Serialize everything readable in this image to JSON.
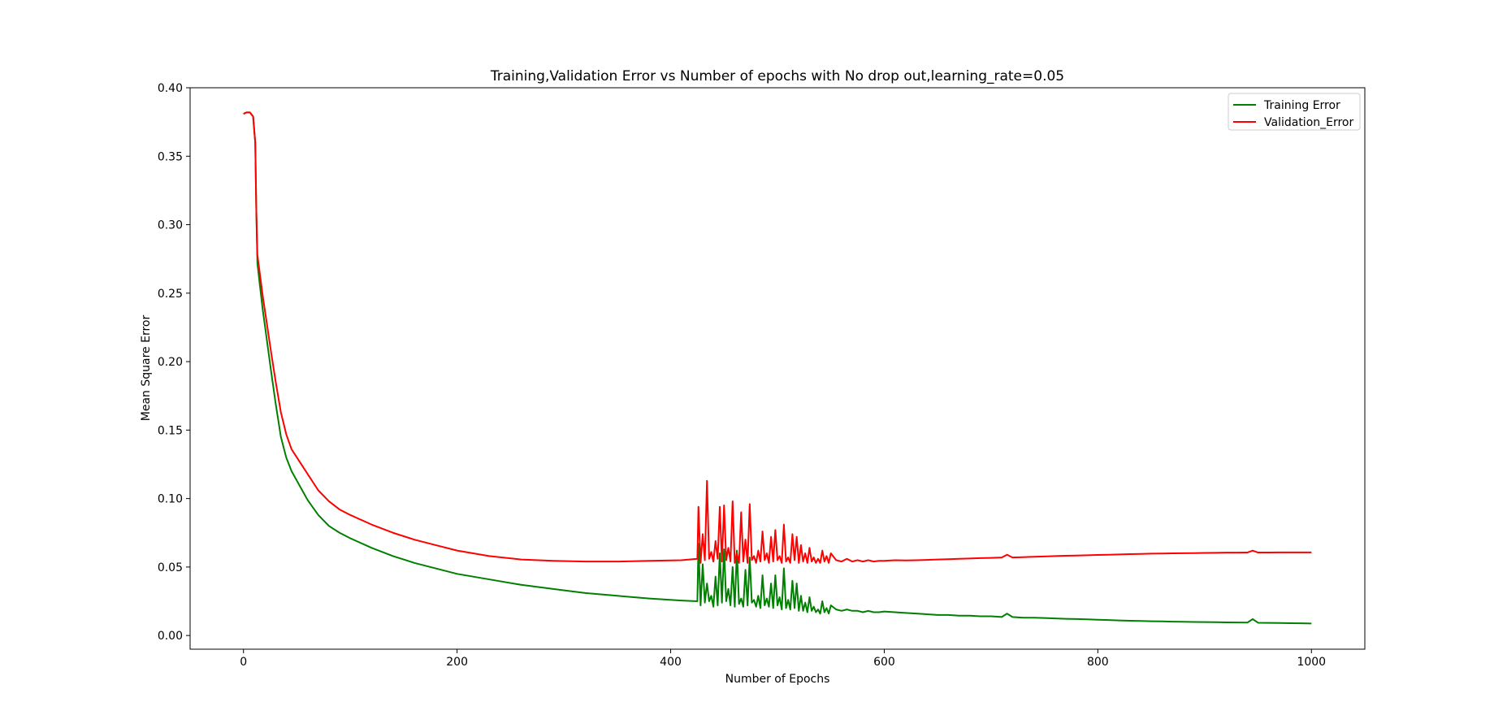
{
  "chart_data": {
    "type": "line",
    "title": "Training,Validation Error vs Number of epochs with No drop out,learning_rate=0.05",
    "xlabel": "Number of Epochs",
    "ylabel": "Mean Square Error",
    "xlim": [
      -50,
      1050
    ],
    "ylim": [
      -0.01,
      0.4
    ],
    "xticks": [
      0,
      200,
      400,
      600,
      800,
      1000
    ],
    "yticks": [
      0.0,
      0.05,
      0.1,
      0.15,
      0.2,
      0.25,
      0.3,
      0.35,
      0.4
    ],
    "xtick_labels": [
      "0",
      "200",
      "400",
      "600",
      "800",
      "1000"
    ],
    "ytick_labels": [
      "0.00",
      "0.05",
      "0.10",
      "0.15",
      "0.20",
      "0.25",
      "0.30",
      "0.35",
      "0.40"
    ],
    "grid": false,
    "legend_position": "top-right",
    "series": [
      {
        "name": "Training Error",
        "color": "#008000",
        "x": [
          0,
          3,
          6,
          9,
          11,
          12,
          13,
          14,
          15,
          18,
          22,
          26,
          30,
          35,
          40,
          45,
          50,
          55,
          60,
          70,
          80,
          90,
          100,
          120,
          140,
          160,
          180,
          200,
          230,
          260,
          290,
          320,
          350,
          380,
          410,
          425,
          426,
          428,
          430,
          432,
          434,
          436,
          438,
          440,
          442,
          444,
          446,
          448,
          450,
          452,
          454,
          456,
          458,
          460,
          462,
          464,
          466,
          468,
          470,
          472,
          474,
          476,
          478,
          480,
          482,
          484,
          486,
          488,
          490,
          492,
          494,
          496,
          498,
          500,
          502,
          504,
          506,
          508,
          510,
          512,
          514,
          516,
          518,
          520,
          522,
          524,
          526,
          528,
          530,
          532,
          534,
          536,
          538,
          540,
          542,
          544,
          546,
          548,
          550,
          555,
          560,
          565,
          570,
          575,
          580,
          585,
          590,
          595,
          600,
          610,
          620,
          630,
          640,
          650,
          660,
          670,
          680,
          690,
          700,
          710,
          715,
          720,
          730,
          740,
          750,
          760,
          770,
          780,
          790,
          800,
          810,
          820,
          830,
          840,
          850,
          860,
          870,
          880,
          890,
          900,
          910,
          920,
          930,
          940,
          945,
          950,
          960,
          970,
          980,
          990,
          1000
        ],
        "y": [
          0.381,
          0.382,
          0.382,
          0.379,
          0.36,
          0.31,
          0.272,
          0.265,
          0.258,
          0.238,
          0.215,
          0.192,
          0.17,
          0.145,
          0.13,
          0.12,
          0.113,
          0.106,
          0.099,
          0.088,
          0.08,
          0.075,
          0.071,
          0.064,
          0.058,
          0.053,
          0.049,
          0.045,
          0.041,
          0.037,
          0.034,
          0.031,
          0.029,
          0.027,
          0.0255,
          0.025,
          0.067,
          0.022,
          0.052,
          0.024,
          0.038,
          0.025,
          0.029,
          0.021,
          0.043,
          0.022,
          0.06,
          0.024,
          0.063,
          0.025,
          0.034,
          0.022,
          0.05,
          0.021,
          0.062,
          0.023,
          0.027,
          0.021,
          0.048,
          0.022,
          0.057,
          0.024,
          0.026,
          0.021,
          0.029,
          0.02,
          0.044,
          0.022,
          0.027,
          0.021,
          0.038,
          0.02,
          0.044,
          0.022,
          0.028,
          0.019,
          0.049,
          0.02,
          0.026,
          0.019,
          0.04,
          0.02,
          0.038,
          0.018,
          0.029,
          0.018,
          0.024,
          0.017,
          0.028,
          0.018,
          0.021,
          0.017,
          0.019,
          0.016,
          0.025,
          0.017,
          0.02,
          0.016,
          0.022,
          0.019,
          0.018,
          0.019,
          0.018,
          0.018,
          0.017,
          0.018,
          0.017,
          0.017,
          0.0175,
          0.017,
          0.0165,
          0.016,
          0.0155,
          0.015,
          0.015,
          0.0145,
          0.0145,
          0.014,
          0.014,
          0.0135,
          0.016,
          0.0135,
          0.013,
          0.013,
          0.0128,
          0.0125,
          0.0122,
          0.012,
          0.0118,
          0.0115,
          0.0113,
          0.011,
          0.0108,
          0.0106,
          0.0104,
          0.0103,
          0.0101,
          0.01,
          0.0099,
          0.0098,
          0.0097,
          0.0096,
          0.0095,
          0.0094,
          0.012,
          0.0093,
          0.0092,
          0.0091,
          0.009,
          0.0089,
          0.0088
        ]
      },
      {
        "name": "Validation_Error",
        "color": "#ff0000",
        "x": [
          0,
          3,
          6,
          9,
          11,
          12,
          13,
          14,
          15,
          18,
          22,
          26,
          30,
          35,
          40,
          45,
          50,
          55,
          60,
          70,
          80,
          90,
          100,
          120,
          140,
          160,
          180,
          200,
          230,
          260,
          290,
          320,
          350,
          380,
          410,
          425,
          426,
          428,
          430,
          432,
          434,
          436,
          438,
          440,
          442,
          444,
          446,
          448,
          450,
          452,
          454,
          456,
          458,
          460,
          462,
          464,
          466,
          468,
          470,
          472,
          474,
          476,
          478,
          480,
          482,
          484,
          486,
          488,
          490,
          492,
          494,
          496,
          498,
          500,
          502,
          504,
          506,
          508,
          510,
          512,
          514,
          516,
          518,
          520,
          522,
          524,
          526,
          528,
          530,
          532,
          534,
          536,
          538,
          540,
          542,
          544,
          546,
          548,
          550,
          555,
          560,
          565,
          570,
          575,
          580,
          585,
          590,
          595,
          600,
          610,
          620,
          630,
          640,
          650,
          660,
          670,
          680,
          690,
          700,
          710,
          715,
          720,
          730,
          740,
          750,
          760,
          770,
          780,
          790,
          800,
          810,
          820,
          830,
          840,
          850,
          860,
          870,
          880,
          890,
          900,
          910,
          920,
          930,
          940,
          945,
          950,
          960,
          970,
          980,
          990,
          1000
        ],
        "y": [
          0.381,
          0.382,
          0.382,
          0.379,
          0.36,
          0.31,
          0.278,
          0.272,
          0.266,
          0.248,
          0.227,
          0.206,
          0.186,
          0.163,
          0.147,
          0.136,
          0.13,
          0.124,
          0.118,
          0.106,
          0.098,
          0.092,
          0.088,
          0.081,
          0.075,
          0.07,
          0.066,
          0.062,
          0.058,
          0.0555,
          0.0545,
          0.054,
          0.054,
          0.0545,
          0.055,
          0.056,
          0.094,
          0.053,
          0.074,
          0.055,
          0.113,
          0.056,
          0.061,
          0.054,
          0.069,
          0.056,
          0.094,
          0.054,
          0.095,
          0.055,
          0.064,
          0.054,
          0.098,
          0.053,
          0.06,
          0.053,
          0.09,
          0.054,
          0.07,
          0.053,
          0.096,
          0.055,
          0.058,
          0.053,
          0.062,
          0.054,
          0.076,
          0.055,
          0.06,
          0.053,
          0.072,
          0.054,
          0.077,
          0.055,
          0.058,
          0.053,
          0.081,
          0.054,
          0.057,
          0.053,
          0.074,
          0.055,
          0.072,
          0.053,
          0.066,
          0.054,
          0.06,
          0.053,
          0.064,
          0.054,
          0.057,
          0.053,
          0.056,
          0.053,
          0.062,
          0.054,
          0.058,
          0.053,
          0.06,
          0.055,
          0.054,
          0.056,
          0.054,
          0.055,
          0.054,
          0.055,
          0.054,
          0.0545,
          0.0545,
          0.055,
          0.0548,
          0.055,
          0.0552,
          0.0555,
          0.0557,
          0.056,
          0.0562,
          0.0565,
          0.0567,
          0.057,
          0.059,
          0.057,
          0.0572,
          0.0575,
          0.0577,
          0.058,
          0.0582,
          0.0584,
          0.0586,
          0.0588,
          0.059,
          0.0592,
          0.0594,
          0.0596,
          0.0598,
          0.0599,
          0.06,
          0.0601,
          0.0602,
          0.0603,
          0.0604,
          0.0605,
          0.0605,
          0.0606,
          0.062,
          0.0606,
          0.0606,
          0.0607,
          0.0607,
          0.0607,
          0.0607
        ]
      }
    ]
  }
}
